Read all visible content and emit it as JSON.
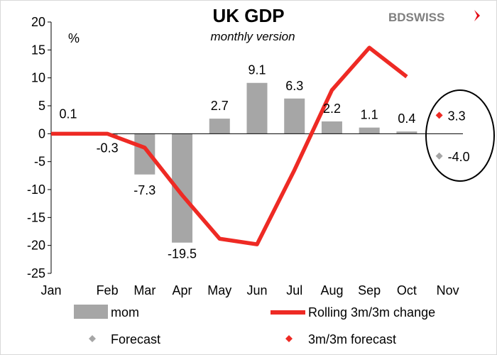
{
  "brand": {
    "name": "BDSWISS",
    "accent": "#e30613",
    "gray": "#7f7f7f"
  },
  "chart_data": {
    "type": "bar",
    "title": "UK GDP",
    "subtitle": "monthly version",
    "ylabel": "%",
    "ylim": [
      -25,
      20
    ],
    "yticks": [
      20,
      15,
      10,
      5,
      0,
      -5,
      -10,
      -15,
      -20,
      -25
    ],
    "categories": [
      "Jan",
      "Feb",
      "Mar",
      "Apr",
      "May",
      "Jun",
      "Jul",
      "Aug",
      "Sep",
      "Oct",
      "Nov"
    ],
    "series": [
      {
        "name": "mom",
        "type": "bar",
        "color": "#a6a6a6",
        "values": [
          0.1,
          -0.3,
          -7.3,
          -19.5,
          2.7,
          9.1,
          6.3,
          2.2,
          1.1,
          0.4,
          null
        ],
        "labels": [
          "0.1",
          "-0.3",
          "-7.3",
          "-19.5",
          "2.7",
          "9.1",
          "6.3",
          "2.2",
          "1.1",
          "0.4",
          ""
        ]
      },
      {
        "name": "Rolling 3m/3m change",
        "type": "line",
        "color": "#ee2a24",
        "values": [
          0.0,
          0.0,
          -2.5,
          -11.0,
          -18.8,
          -19.8,
          -6.5,
          7.8,
          15.4,
          10.2,
          null
        ]
      },
      {
        "name": "Forecast",
        "type": "point",
        "color": "#a6a6a6",
        "category": "Nov",
        "value": -4.0,
        "label": "-4.0"
      },
      {
        "name": "3m/3m forecast",
        "type": "point",
        "color": "#ee2a24",
        "category": "Nov",
        "value": 3.3,
        "label": "3.3"
      }
    ],
    "legend": {
      "placement": "bottom",
      "items": [
        "mom",
        "Rolling 3m/3m change",
        "Forecast",
        "3m/3m forecast"
      ]
    },
    "grid": false
  }
}
